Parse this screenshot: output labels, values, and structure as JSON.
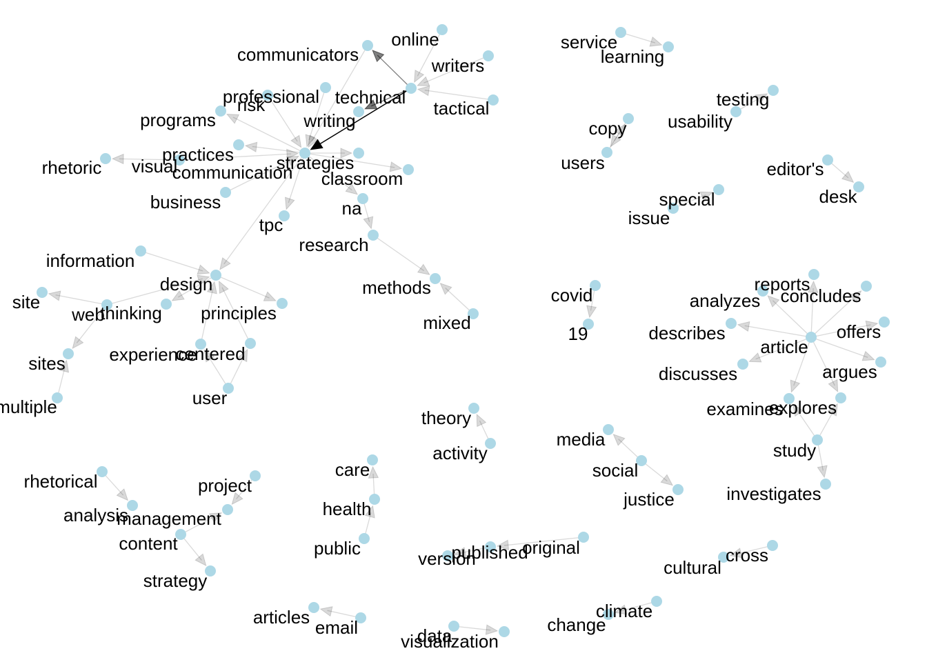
{
  "graph": {
    "node_color": "#add8e6",
    "edge_color": "#000000",
    "nodes": [
      {
        "id": "communicators",
        "label": "communicators"
      },
      {
        "id": "online",
        "label": "online"
      },
      {
        "id": "writers",
        "label": "writers"
      },
      {
        "id": "technical",
        "label": "technical"
      },
      {
        "id": "tactical",
        "label": "tactical"
      },
      {
        "id": "professional",
        "label": "professional"
      },
      {
        "id": "risk",
        "label": "risk"
      },
      {
        "id": "writing",
        "label": "writing"
      },
      {
        "id": "programs",
        "label": "programs"
      },
      {
        "id": "practices",
        "label": "practices"
      },
      {
        "id": "strategies",
        "label": "strategies"
      },
      {
        "id": "communication",
        "label": "communication"
      },
      {
        "id": "visual",
        "label": "visual"
      },
      {
        "id": "rhetoric",
        "label": "rhetoric"
      },
      {
        "id": "classroom",
        "label": "classroom"
      },
      {
        "id": "business",
        "label": "business"
      },
      {
        "id": "tpc",
        "label": "tpc"
      },
      {
        "id": "na",
        "label": "na"
      },
      {
        "id": "research",
        "label": "research"
      },
      {
        "id": "methods",
        "label": "methods"
      },
      {
        "id": "mixed",
        "label": "mixed"
      },
      {
        "id": "information",
        "label": "information"
      },
      {
        "id": "design",
        "label": "design"
      },
      {
        "id": "site",
        "label": "site"
      },
      {
        "id": "web",
        "label": "web"
      },
      {
        "id": "thinking",
        "label": "thinking"
      },
      {
        "id": "principles",
        "label": "principles"
      },
      {
        "id": "sites",
        "label": "sites"
      },
      {
        "id": "experience",
        "label": "experience"
      },
      {
        "id": "centered",
        "label": "centered"
      },
      {
        "id": "user",
        "label": "user"
      },
      {
        "id": "multiple",
        "label": "multiple"
      },
      {
        "id": "service",
        "label": "service"
      },
      {
        "id": "learning",
        "label": "learning"
      },
      {
        "id": "testing",
        "label": "testing"
      },
      {
        "id": "usability",
        "label": "usability"
      },
      {
        "id": "copy",
        "label": "copy"
      },
      {
        "id": "users",
        "label": "users"
      },
      {
        "id": "editors",
        "label": "editor's"
      },
      {
        "id": "desk",
        "label": "desk"
      },
      {
        "id": "special",
        "label": "special"
      },
      {
        "id": "issue",
        "label": "issue"
      },
      {
        "id": "covid",
        "label": "covid"
      },
      {
        "id": "n19",
        "label": "19"
      },
      {
        "id": "reports",
        "label": "reports"
      },
      {
        "id": "analyzes",
        "label": "analyzes"
      },
      {
        "id": "concludes",
        "label": "concludes"
      },
      {
        "id": "describes",
        "label": "describes"
      },
      {
        "id": "offers",
        "label": "offers"
      },
      {
        "id": "article",
        "label": "article"
      },
      {
        "id": "discusses",
        "label": "discusses"
      },
      {
        "id": "argues",
        "label": "argues"
      },
      {
        "id": "examines",
        "label": "examines"
      },
      {
        "id": "explores",
        "label": "explores"
      },
      {
        "id": "study",
        "label": "study"
      },
      {
        "id": "investigates",
        "label": "investigates"
      },
      {
        "id": "theory",
        "label": "theory"
      },
      {
        "id": "activity",
        "label": "activity"
      },
      {
        "id": "media",
        "label": "media"
      },
      {
        "id": "social",
        "label": "social"
      },
      {
        "id": "justice",
        "label": "justice"
      },
      {
        "id": "rhetorical",
        "label": "rhetorical"
      },
      {
        "id": "analysis",
        "label": "analysis"
      },
      {
        "id": "project",
        "label": "project"
      },
      {
        "id": "management",
        "label": "management"
      },
      {
        "id": "content",
        "label": "content"
      },
      {
        "id": "strategy",
        "label": "strategy"
      },
      {
        "id": "care",
        "label": "care"
      },
      {
        "id": "health",
        "label": "health"
      },
      {
        "id": "public",
        "label": "public"
      },
      {
        "id": "version",
        "label": "version"
      },
      {
        "id": "published",
        "label": "published"
      },
      {
        "id": "original",
        "label": "original"
      },
      {
        "id": "cultural",
        "label": "cultural"
      },
      {
        "id": "cross",
        "label": "cross"
      },
      {
        "id": "articles",
        "label": "articles"
      },
      {
        "id": "email",
        "label": "email"
      },
      {
        "id": "data",
        "label": "data"
      },
      {
        "id": "visualization",
        "label": "visualization"
      },
      {
        "id": "change",
        "label": "change"
      },
      {
        "id": "climate",
        "label": "climate"
      }
    ],
    "edges": [
      {
        "from": "technical",
        "to": "communication",
        "weight": 1.0
      },
      {
        "from": "technical",
        "to": "communicators",
        "weight": 0.5
      },
      {
        "from": "technical",
        "to": "writing",
        "weight": 0.55
      },
      {
        "from": "online",
        "to": "technical",
        "weight": 0.15
      },
      {
        "from": "writers",
        "to": "technical",
        "weight": 0.15
      },
      {
        "from": "tactical",
        "to": "technical",
        "weight": 0.15
      },
      {
        "from": "professional",
        "to": "communication",
        "weight": 0.15
      },
      {
        "from": "risk",
        "to": "communication",
        "weight": 0.15
      },
      {
        "from": "communicators",
        "to": "communication",
        "weight": 0.15
      },
      {
        "from": "communication",
        "to": "programs",
        "weight": 0.15
      },
      {
        "from": "communication",
        "to": "practices",
        "weight": 0.15
      },
      {
        "from": "communication",
        "to": "strategies",
        "weight": 0.15
      },
      {
        "from": "communication",
        "to": "classroom",
        "weight": 0.15
      },
      {
        "from": "communication",
        "to": "na",
        "weight": 0.15
      },
      {
        "from": "communication",
        "to": "tpc",
        "weight": 0.15
      },
      {
        "from": "communication",
        "to": "design",
        "weight": 0.15
      },
      {
        "from": "business",
        "to": "communication",
        "weight": 0.15
      },
      {
        "from": "visual",
        "to": "communication",
        "weight": 0.15
      },
      {
        "from": "visual",
        "to": "rhetoric",
        "weight": 0.15
      },
      {
        "from": "research",
        "to": "methods",
        "weight": 0.15
      },
      {
        "from": "na",
        "to": "research",
        "weight": 0.15
      },
      {
        "from": "mixed",
        "to": "methods",
        "weight": 0.15
      },
      {
        "from": "information",
        "to": "design",
        "weight": 0.15
      },
      {
        "from": "design",
        "to": "principles",
        "weight": 0.15
      },
      {
        "from": "design",
        "to": "thinking",
        "weight": 0.15
      },
      {
        "from": "web",
        "to": "site",
        "weight": 0.15
      },
      {
        "from": "web",
        "to": "design",
        "weight": 0.15
      },
      {
        "from": "web",
        "to": "sites",
        "weight": 0.15
      },
      {
        "from": "experience",
        "to": "design",
        "weight": 0.15
      },
      {
        "from": "centered",
        "to": "design",
        "weight": 0.15
      },
      {
        "from": "user",
        "to": "experience",
        "weight": 0.15
      },
      {
        "from": "user",
        "to": "centered",
        "weight": 0.15
      },
      {
        "from": "multiple",
        "to": "sites",
        "weight": 0.15
      },
      {
        "from": "service",
        "to": "learning",
        "weight": 0.15
      },
      {
        "from": "usability",
        "to": "testing",
        "weight": 0.15
      },
      {
        "from": "copy",
        "to": "users",
        "weight": 0.15
      },
      {
        "from": "users",
        "to": "copy",
        "weight": 0.15
      },
      {
        "from": "editors",
        "to": "desk",
        "weight": 0.15
      },
      {
        "from": "issue",
        "to": "special",
        "weight": 0.15
      },
      {
        "from": "covid",
        "to": "n19",
        "weight": 0.15
      },
      {
        "from": "article",
        "to": "reports",
        "weight": 0.15
      },
      {
        "from": "article",
        "to": "analyzes",
        "weight": 0.15
      },
      {
        "from": "article",
        "to": "concludes",
        "weight": 0.15
      },
      {
        "from": "article",
        "to": "describes",
        "weight": 0.15
      },
      {
        "from": "article",
        "to": "offers",
        "weight": 0.15
      },
      {
        "from": "article",
        "to": "discusses",
        "weight": 0.15
      },
      {
        "from": "article",
        "to": "argues",
        "weight": 0.15
      },
      {
        "from": "article",
        "to": "examines",
        "weight": 0.15
      },
      {
        "from": "article",
        "to": "explores",
        "weight": 0.15
      },
      {
        "from": "study",
        "to": "explores",
        "weight": 0.15
      },
      {
        "from": "study",
        "to": "examines",
        "weight": 0.15
      },
      {
        "from": "study",
        "to": "investigates",
        "weight": 0.15
      },
      {
        "from": "activity",
        "to": "theory",
        "weight": 0.15
      },
      {
        "from": "social",
        "to": "media",
        "weight": 0.15
      },
      {
        "from": "social",
        "to": "justice",
        "weight": 0.15
      },
      {
        "from": "rhetorical",
        "to": "analysis",
        "weight": 0.15
      },
      {
        "from": "project",
        "to": "management",
        "weight": 0.15
      },
      {
        "from": "content",
        "to": "management",
        "weight": 0.15
      },
      {
        "from": "content",
        "to": "strategy",
        "weight": 0.15
      },
      {
        "from": "health",
        "to": "care",
        "weight": 0.15
      },
      {
        "from": "public",
        "to": "health",
        "weight": 0.15
      },
      {
        "from": "published",
        "to": "version",
        "weight": 0.15
      },
      {
        "from": "original",
        "to": "published",
        "weight": 0.15
      },
      {
        "from": "cross",
        "to": "cultural",
        "weight": 0.15
      },
      {
        "from": "email",
        "to": "articles",
        "weight": 0.15
      },
      {
        "from": "data",
        "to": "visualization",
        "weight": 0.15
      },
      {
        "from": "climate",
        "to": "change",
        "weight": 0.15
      }
    ]
  }
}
